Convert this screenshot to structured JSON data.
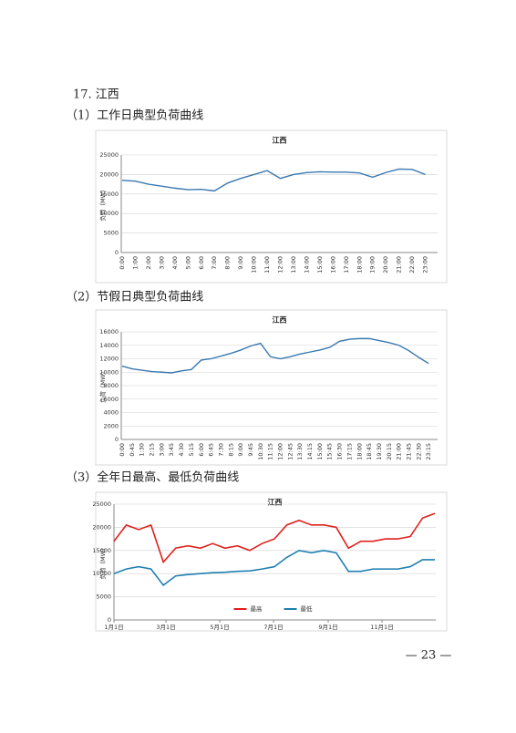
{
  "heading": "17. 江西",
  "captions": [
    "（1）工作日典型负荷曲线",
    "（2）节假日典型负荷曲线",
    "（3）全年日最高、最低负荷曲线"
  ],
  "page_number": "— 23 —",
  "chart_data": [
    {
      "type": "line",
      "title": "江西",
      "y_label": "负荷（MW）",
      "color": "#3a78b0",
      "grid": true,
      "ylim": [
        0,
        25000
      ],
      "yticks": [
        0,
        5000,
        10000,
        15000,
        20000,
        25000
      ],
      "categories": [
        "0:00",
        "1:00",
        "2:00",
        "3:00",
        "4:00",
        "5:00",
        "6:00",
        "7:00",
        "8:00",
        "9:00",
        "10:00",
        "11:00",
        "12:00",
        "13:00",
        "14:00",
        "15:00",
        "16:00",
        "17:00",
        "18:00",
        "19:00",
        "20:00",
        "21:00",
        "22:00",
        "23:00"
      ],
      "values": [
        18500,
        18300,
        17500,
        17000,
        16500,
        16100,
        16200,
        15800,
        17800,
        19000,
        20000,
        21000,
        19000,
        20000,
        20500,
        20700,
        20600,
        20600,
        20400,
        19300,
        20500,
        21400,
        21300,
        20000
      ]
    },
    {
      "type": "line",
      "title": "江西",
      "y_label": "负荷（MW）",
      "color": "#3a78b0",
      "grid": true,
      "ylim": [
        0,
        16000
      ],
      "yticks": [
        0,
        2000,
        4000,
        6000,
        8000,
        10000,
        12000,
        14000,
        16000
      ],
      "categories": [
        "0:00",
        "0:45",
        "1:30",
        "2:15",
        "3:00",
        "3:45",
        "4:30",
        "5:15",
        "6:00",
        "6:45",
        "7:30",
        "8:15",
        "9:00",
        "9:45",
        "10:30",
        "11:15",
        "12:00",
        "12:45",
        "13:30",
        "14:15",
        "15:00",
        "15:45",
        "16:30",
        "17:15",
        "18:00",
        "18:45",
        "19:30",
        "20:15",
        "21:00",
        "21:45",
        "22:30",
        "23:15"
      ],
      "values": [
        10900,
        10500,
        10300,
        10100,
        10000,
        9900,
        10200,
        10400,
        11800,
        12000,
        12400,
        12800,
        13300,
        13900,
        14300,
        12300,
        12000,
        12300,
        12700,
        13000,
        13300,
        13700,
        14600,
        14900,
        15000,
        15000,
        14700,
        14400,
        14000,
        13200,
        12200,
        11300
      ]
    },
    {
      "type": "line",
      "title": "江西",
      "y_label": "负荷（MW）",
      "grid": true,
      "legend": "bottom",
      "ylim": [
        0,
        25000
      ],
      "yticks": [
        0,
        5000,
        10000,
        15000,
        20000,
        25000
      ],
      "xlim": [
        0,
        365
      ],
      "xticks": [
        {
          "value": 0,
          "label": "1月1日"
        },
        {
          "value": 59,
          "label": "3月1日"
        },
        {
          "value": 120,
          "label": "5月1日"
        },
        {
          "value": 181,
          "label": "7月1日"
        },
        {
          "value": 243,
          "label": "9月1日"
        },
        {
          "value": 304,
          "label": "11月1日"
        }
      ],
      "x": [
        0,
        14,
        28,
        42,
        56,
        70,
        84,
        98,
        112,
        126,
        140,
        154,
        168,
        182,
        196,
        210,
        224,
        238,
        252,
        266,
        280,
        294,
        308,
        322,
        336,
        350,
        364
      ],
      "series": [
        {
          "name": "最高",
          "color": "#e0201b",
          "values": [
            17000,
            20500,
            19500,
            20500,
            12500,
            15500,
            16000,
            15500,
            16500,
            15500,
            16000,
            15000,
            16500,
            17500,
            20500,
            21500,
            20500,
            20500,
            20000,
            15500,
            17000,
            17000,
            17500,
            17500,
            18000,
            22000,
            23000
          ]
        },
        {
          "name": "最低",
          "color": "#1f7fb0",
          "values": [
            10000,
            11000,
            11500,
            11000,
            7500,
            9500,
            9800,
            10000,
            10200,
            10300,
            10500,
            10600,
            11000,
            11500,
            13500,
            15000,
            14500,
            15000,
            14500,
            10500,
            10500,
            11000,
            11000,
            11000,
            11500,
            13000,
            13000
          ]
        }
      ]
    }
  ]
}
